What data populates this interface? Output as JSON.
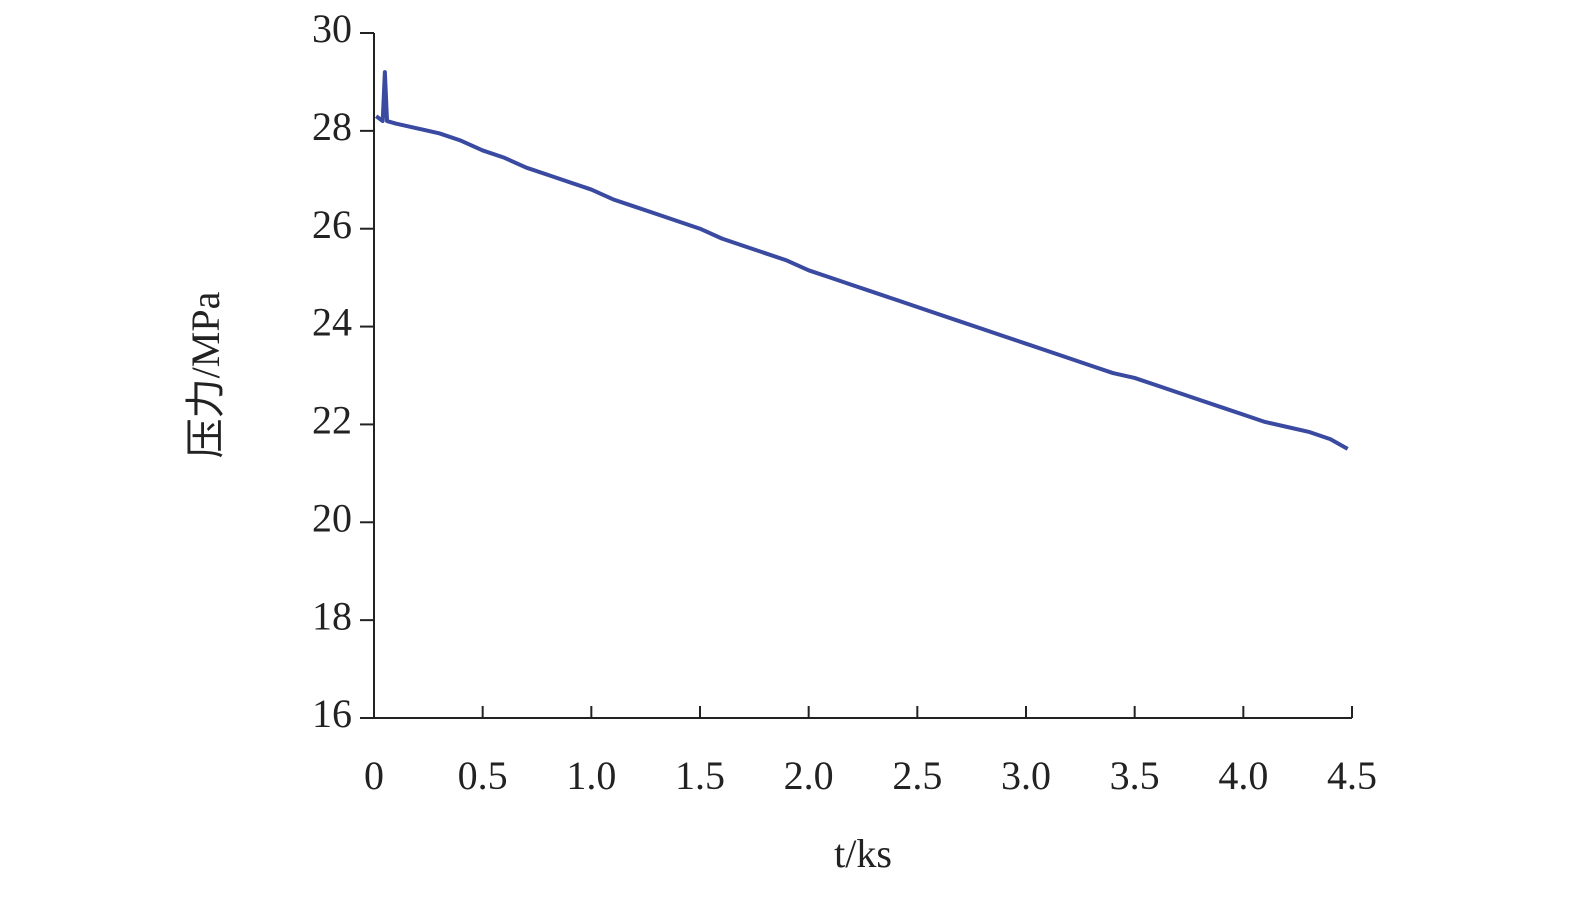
{
  "chart_data": {
    "type": "line",
    "x_label": "t/ks",
    "y_label": "压力/MPa",
    "x": [
      0.01,
      0.04,
      0.05,
      0.06,
      0.1,
      0.2,
      0.3,
      0.4,
      0.5,
      0.6,
      0.7,
      0.8,
      0.9,
      1.0,
      1.1,
      1.2,
      1.3,
      1.4,
      1.5,
      1.6,
      1.7,
      1.8,
      1.9,
      2.0,
      2.1,
      2.2,
      2.3,
      2.4,
      2.5,
      2.6,
      2.7,
      2.8,
      2.9,
      3.0,
      3.1,
      3.2,
      3.3,
      3.4,
      3.5,
      3.6,
      3.7,
      3.8,
      3.9,
      4.0,
      4.1,
      4.2,
      4.3,
      4.4,
      4.48
    ],
    "series": [
      {
        "color": "#3a4aa0",
        "values": [
          28.3,
          28.2,
          29.2,
          28.2,
          28.15,
          28.05,
          27.95,
          27.8,
          27.6,
          27.45,
          27.25,
          27.1,
          26.95,
          26.8,
          26.6,
          26.45,
          26.3,
          26.15,
          26.0,
          25.8,
          25.65,
          25.5,
          25.35,
          25.15,
          25.0,
          24.85,
          24.7,
          24.55,
          24.4,
          24.25,
          24.1,
          23.95,
          23.8,
          23.65,
          23.5,
          23.35,
          23.2,
          23.05,
          22.95,
          22.8,
          22.65,
          22.5,
          22.35,
          22.2,
          22.05,
          21.95,
          21.85,
          21.7,
          21.5
        ]
      }
    ],
    "xlim": [
      0,
      4.5
    ],
    "xticks": [
      0,
      0.5,
      {
        "value": 1,
        "label": "1.0"
      },
      1.5,
      {
        "value": 2,
        "label": "2.0"
      },
      2.5,
      {
        "value": 3,
        "label": "3.0"
      },
      3.5,
      {
        "value": 4,
        "label": "4.0"
      },
      4.5
    ],
    "ylim": [
      16,
      30
    ],
    "yticks": [
      16,
      18,
      20,
      22,
      24,
      26,
      28,
      30
    ],
    "grid": false
  }
}
